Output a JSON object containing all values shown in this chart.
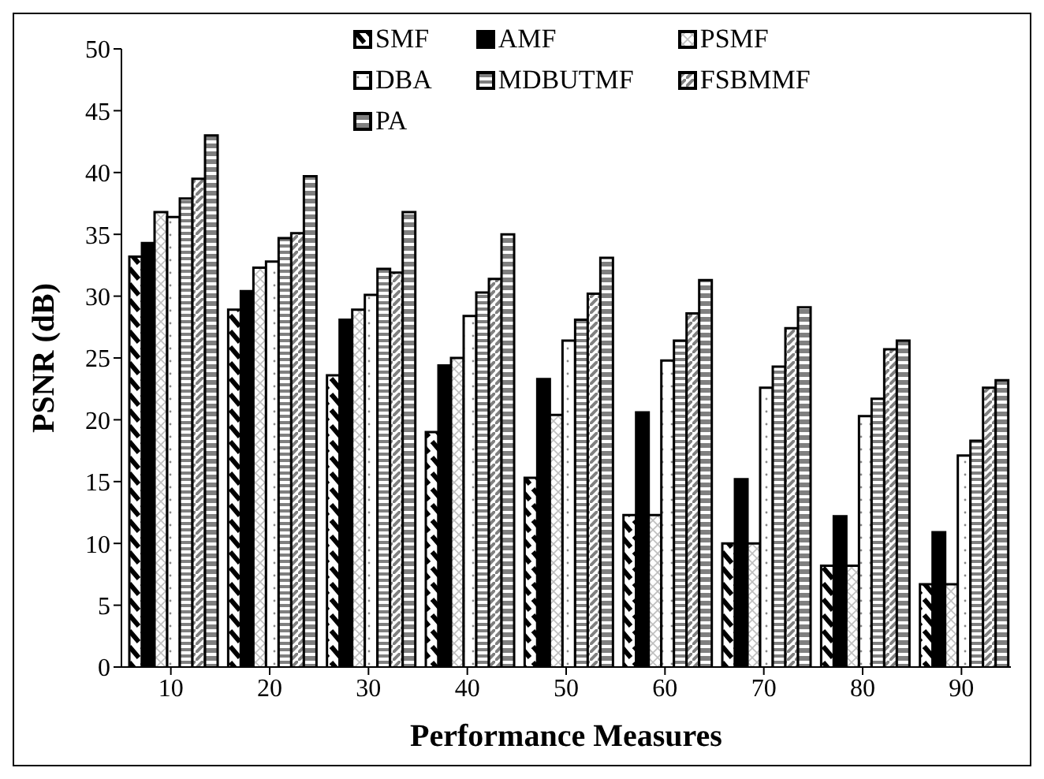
{
  "chart_data": {
    "type": "bar",
    "xlabel": "Performance Measures",
    "ylabel": "PSNR (dB)",
    "categories": [
      "10",
      "20",
      "30",
      "40",
      "50",
      "60",
      "70",
      "80",
      "90"
    ],
    "series": [
      {
        "name": "SMF",
        "color": "#000000",
        "values": [
          33.2,
          28.9,
          23.6,
          19.0,
          15.3,
          12.3,
          10.0,
          8.2,
          6.7
        ]
      },
      {
        "name": "AMF",
        "color": "#000000",
        "values": [
          34.3,
          30.4,
          28.1,
          24.4,
          23.3,
          20.6,
          15.2,
          12.2,
          10.9
        ]
      },
      {
        "name": "PSMF",
        "color": "#bfbfbf",
        "values": [
          36.8,
          32.3,
          28.9,
          25.0,
          20.4,
          12.3,
          10.0,
          8.2,
          6.7
        ]
      },
      {
        "name": "DBA",
        "color": "#ffffff",
        "values": [
          36.4,
          32.8,
          30.1,
          28.4,
          26.4,
          24.8,
          22.6,
          20.3,
          17.1
        ]
      },
      {
        "name": "MDBUTMF",
        "color": "#808080",
        "values": [
          37.9,
          34.7,
          32.2,
          30.3,
          28.1,
          26.4,
          24.3,
          21.7,
          18.3
        ]
      },
      {
        "name": "FSBMMF",
        "color": "#808080",
        "values": [
          39.5,
          35.1,
          31.9,
          31.4,
          30.2,
          28.6,
          27.4,
          25.7,
          22.6
        ]
      },
      {
        "name": "PA",
        "color": "#808080",
        "values": [
          43.0,
          39.7,
          36.8,
          35.0,
          33.1,
          31.3,
          29.1,
          26.4,
          23.2
        ]
      }
    ],
    "ylim": [
      0,
      50
    ],
    "yticks": [
      0,
      5,
      10,
      15,
      20,
      25,
      30,
      35,
      40,
      45,
      50
    ],
    "grid": false,
    "legend": "top"
  }
}
